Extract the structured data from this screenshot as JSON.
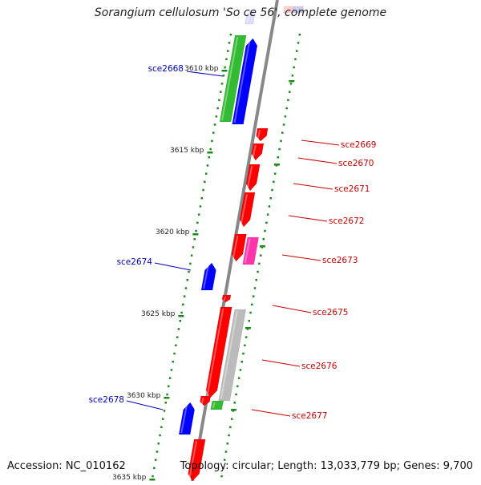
{
  "title": "Sorangium cellulosum 'So ce 56', complete genome",
  "footer": {
    "accession": "Accession: NC_010162",
    "summary": "Topology: circular; Length: 13,033,779 bp; Genes: 9,700"
  },
  "colors": {
    "backbone": "#888888",
    "tick": "#1a8a1a",
    "forward_gene": "#ff0000",
    "reverse_gene": "#0000ff",
    "pink_gene": "#ff33aa",
    "green_gene": "#33bb33",
    "gray_gene": "#bbbbbb",
    "label_forward": "#cc0000",
    "label_reverse": "#0000bb"
  },
  "scale_labels": [
    {
      "kbp": 3610,
      "text": "3610 kbp"
    },
    {
      "kbp": 3615,
      "text": "3615 kbp"
    },
    {
      "kbp": 3620,
      "text": "3620 kbp"
    },
    {
      "kbp": 3625,
      "text": "3625 kbp"
    },
    {
      "kbp": 3630,
      "text": "3630 kbp"
    },
    {
      "kbp": 3635,
      "text": "3635 kbp"
    }
  ],
  "gene_labels": [
    {
      "name": "sce2668",
      "side": "left"
    },
    {
      "name": "sce2669",
      "side": "right"
    },
    {
      "name": "sce2670",
      "side": "right"
    },
    {
      "name": "sce2671",
      "side": "right"
    },
    {
      "name": "sce2672",
      "side": "right"
    },
    {
      "name": "sce2673",
      "side": "right"
    },
    {
      "name": "sce2674",
      "side": "left"
    },
    {
      "name": "sce2675",
      "side": "right"
    },
    {
      "name": "sce2676",
      "side": "right"
    },
    {
      "name": "sce2677",
      "side": "right"
    },
    {
      "name": "sce2678",
      "side": "left"
    }
  ]
}
